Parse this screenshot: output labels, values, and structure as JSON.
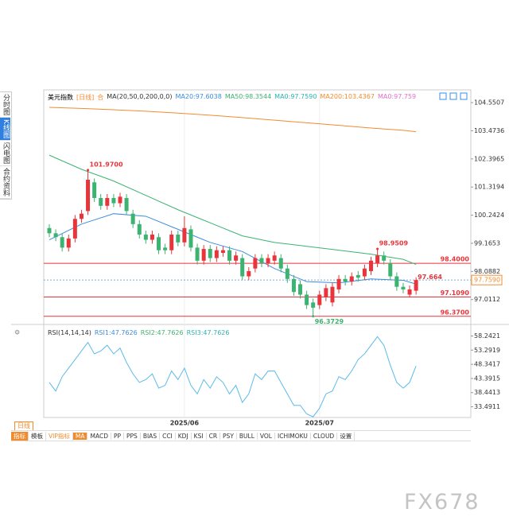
{
  "tabs": [
    "分时图",
    "K线图",
    "闪电图",
    "合约资料"
  ],
  "toolbar": {
    "period": "日线",
    "items": [
      "指标",
      "模板",
      "VIP指标",
      "MA",
      "MACD",
      "PP",
      "PPS",
      "BIAS",
      "CCI",
      "KDJ",
      "KSI",
      "CR",
      "PSY",
      "BULL",
      "VOL",
      "ICHIMOKU",
      "CLOUD",
      "设置"
    ]
  },
  "watermark": "FX678",
  "chart_data": {
    "type": "candlestick",
    "title": "美元指数",
    "period": "[日线]",
    "icon": "合",
    "indicator": "MA(20,50,0,200,0,0)",
    "categories": [
      null,
      null,
      null,
      null,
      null,
      null,
      null,
      null,
      null,
      null,
      null,
      null,
      null,
      null,
      null,
      null,
      null,
      null,
      null,
      null,
      null,
      "2025/06",
      null,
      null,
      null,
      null,
      null,
      null,
      null,
      null,
      null,
      null,
      null,
      null,
      null,
      null,
      null,
      null,
      null,
      null,
      null,
      null,
      "2025/07",
      null,
      null,
      null,
      null,
      null,
      null,
      null,
      null,
      null,
      null,
      null,
      null,
      null,
      null,
      null
    ],
    "open": [
      99.75,
      99.55,
      99.4,
      99.0,
      99.35,
      100.1,
      100.4,
      101.5,
      100.9,
      100.6,
      100.9,
      100.7,
      100.9,
      100.3,
      99.9,
      99.5,
      99.3,
      99.4,
      99.0,
      98.9,
      99.5,
      99.2,
      99.7,
      99.0,
      98.5,
      98.95,
      98.6,
      98.8,
      98.9,
      98.5,
      98.6,
      97.9,
      98.2,
      98.6,
      98.4,
      98.5,
      98.6,
      98.2,
      97.8,
      97.6,
      97.2,
      96.9,
      96.8,
      97.1,
      96.9,
      97.4,
      97.8,
      97.7,
      97.95,
      97.9,
      98.1,
      98.4,
      98.7,
      98.4,
      97.9,
      97.5,
      97.2,
      97.35
    ],
    "high": [
      99.9,
      99.7,
      99.55,
      99.5,
      100.25,
      100.45,
      101.97,
      101.65,
      101.05,
      101.05,
      101.05,
      101.1,
      101.05,
      100.45,
      100.05,
      99.65,
      99.65,
      99.55,
      99.15,
      99.65,
      99.65,
      100.2,
      99.85,
      99.15,
      99.1,
      99.1,
      99.05,
      99.05,
      99.05,
      98.85,
      98.75,
      98.25,
      98.75,
      98.75,
      98.75,
      98.85,
      98.75,
      98.35,
      97.95,
      97.75,
      97.35,
      97.05,
      97.35,
      97.6,
      97.65,
      97.95,
      97.95,
      98.05,
      98.1,
      98.35,
      98.65,
      98.9509,
      98.85,
      98.55,
      98.05,
      97.65,
      97.55,
      97.864
    ],
    "low": [
      99.4,
      99.25,
      98.85,
      98.85,
      99.2,
      99.95,
      100.25,
      100.75,
      100.45,
      100.45,
      100.55,
      100.55,
      100.25,
      99.75,
      99.35,
      99.15,
      99.15,
      98.75,
      98.75,
      98.75,
      99.05,
      99.05,
      98.85,
      98.35,
      98.35,
      98.45,
      98.45,
      98.65,
      98.35,
      98.35,
      97.75,
      97.75,
      98.05,
      98.25,
      98.25,
      98.35,
      98.05,
      97.65,
      97.15,
      97.05,
      96.65,
      96.3729,
      96.65,
      96.95,
      96.75,
      97.25,
      97.55,
      97.55,
      97.7,
      97.75,
      97.95,
      98.25,
      98.35,
      97.75,
      97.35,
      97.25,
      97.109,
      97.2
    ],
    "close": [
      99.55,
      99.4,
      99.0,
      99.35,
      100.1,
      100.3,
      101.6,
      100.9,
      100.6,
      100.9,
      100.7,
      100.95,
      100.4,
      99.9,
      99.5,
      99.3,
      99.5,
      98.9,
      98.9,
      99.5,
      99.2,
      99.75,
      99.0,
      98.5,
      98.95,
      98.6,
      98.9,
      98.9,
      98.5,
      98.7,
      97.9,
      98.1,
      98.6,
      98.4,
      98.6,
      98.7,
      98.2,
      97.8,
      97.3,
      97.2,
      96.8,
      96.7,
      97.2,
      97.45,
      97.5,
      97.8,
      97.7,
      97.9,
      97.85,
      98.2,
      98.5,
      98.7,
      98.5,
      97.9,
      97.5,
      97.4,
      97.4,
      97.759
    ],
    "up_color": "#e8353b",
    "down_color": "#3cb371",
    "ylim": [
      96.15,
      105.04
    ],
    "yticks": [
      97.0112,
      98.0882,
      99.1653,
      100.2424,
      101.3194,
      102.3965,
      103.4736,
      104.5507
    ],
    "ma": [
      {
        "name": "MA20:97.6038",
        "color": "#3b8de0",
        "x": [
          0,
          5,
          10,
          15,
          20,
          25,
          30,
          35,
          40,
          45,
          50,
          55,
          57
        ],
        "values": [
          99.3,
          99.9,
          100.3,
          100.2,
          99.7,
          99.2,
          98.85,
          98.2,
          97.7,
          97.65,
          97.8,
          97.75,
          97.6038
        ]
      },
      {
        "name": "MA50:98.3544",
        "color": "#3cb371",
        "x": [
          0,
          5,
          10,
          15,
          20,
          25,
          30,
          35,
          40,
          45,
          50,
          55,
          57
        ],
        "values": [
          102.54,
          102.0,
          101.55,
          101.0,
          100.45,
          99.95,
          99.45,
          99.2,
          99.05,
          98.9,
          98.75,
          98.55,
          98.3544
        ]
      },
      {
        "name": "MA0:97.7590",
        "color": "#2bb3b0"
      },
      {
        "name": "MA200:103.4367",
        "color": "#f08c2e",
        "x": [
          0,
          5,
          10,
          15,
          20,
          25,
          30,
          35,
          40,
          45,
          50,
          55,
          57
        ],
        "values": [
          104.37,
          104.33,
          104.28,
          104.22,
          104.15,
          104.07,
          103.98,
          103.88,
          103.78,
          103.68,
          103.58,
          103.49,
          103.437
        ]
      },
      {
        "name": "MA0:97.759",
        "color": "#e070c8"
      }
    ],
    "levels": [
      {
        "value": 98.4,
        "label": "98.4000"
      },
      {
        "value": 97.109,
        "label": "97.1090"
      },
      {
        "value": 96.37,
        "label": "96.3700"
      }
    ],
    "level_color": "#e8353b",
    "annotations": [
      {
        "value": 101.97,
        "label": "101.9700"
      },
      {
        "value": 98.9509,
        "label": "98.9509"
      },
      {
        "value": 96.3729,
        "label": "96.3729"
      },
      {
        "value": 97.664,
        "label": "97.664"
      }
    ],
    "last_price": {
      "value": 97.759,
      "label": "97.7590"
    },
    "rsi": {
      "title": "RSI(14,14,14)",
      "legend": [
        {
          "name": "RSI1:47.7626",
          "color": "#3b8de0"
        },
        {
          "name": "RSI2:47.7626",
          "color": "#3cb371"
        },
        {
          "name": "RSI3:47.7626",
          "color": "#2bb3b0"
        }
      ],
      "color": "#5bbbe8",
      "values": [
        42,
        39,
        44,
        47,
        50,
        53,
        56,
        52,
        53,
        55,
        52,
        54,
        49,
        45,
        42,
        43,
        45,
        40,
        41,
        46,
        43,
        47,
        41,
        38,
        43,
        40,
        44,
        42,
        38,
        41,
        35,
        38,
        45,
        43,
        46,
        46,
        42,
        38,
        34,
        34,
        31,
        30,
        33,
        38,
        39,
        44,
        43,
        46,
        50,
        52,
        55,
        58,
        55,
        48,
        42,
        40,
        42,
        47.7626
      ],
      "ylim": [
        29.75,
        62.27
      ],
      "yticks": [
        33.4911,
        38.4413,
        43.3915,
        48.3417,
        53.2919,
        58.2421
      ]
    }
  }
}
